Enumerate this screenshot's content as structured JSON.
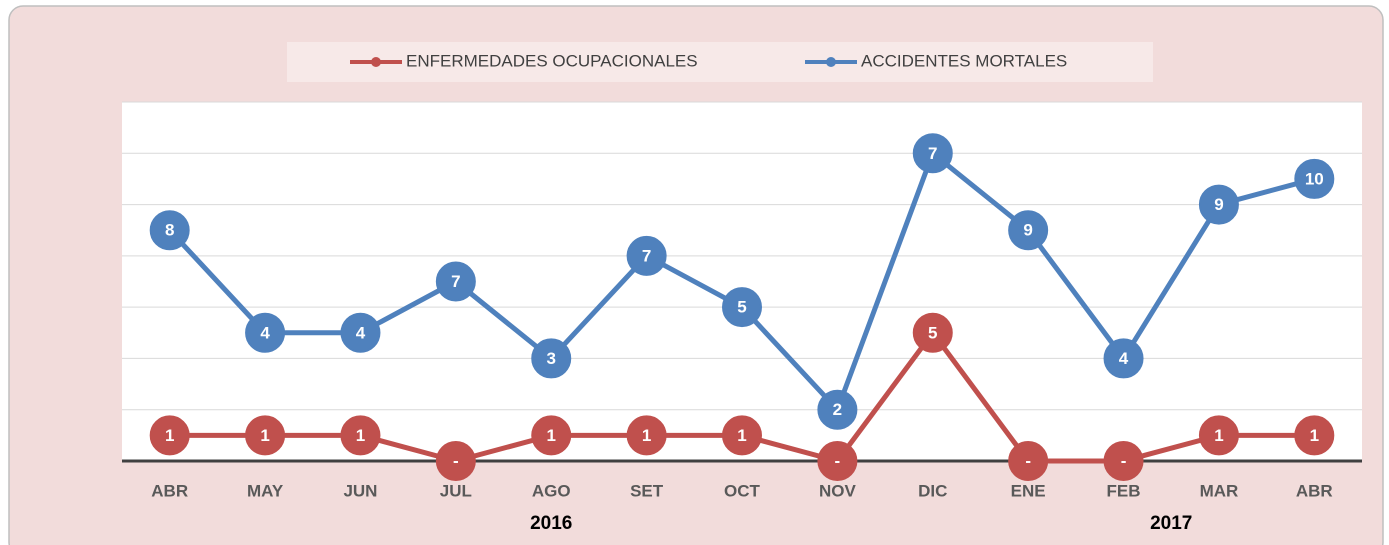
{
  "chart_data": {
    "type": "line",
    "stacked": true,
    "categories": [
      "ABR",
      "MAY",
      "JUN",
      "JUL",
      "AGO",
      "SET",
      "OCT",
      "NOV",
      "DIC",
      "ENE",
      "FEB",
      "MAR",
      "ABR"
    ],
    "groups": [
      {
        "label": "2016",
        "start": 0,
        "end": 8
      },
      {
        "label": "2017",
        "start": 9,
        "end": 12
      }
    ],
    "series": [
      {
        "name": "ENFERMEDADES OCUPACIONALES",
        "color": "#c0504d",
        "values": [
          1,
          1,
          1,
          0,
          1,
          1,
          1,
          0,
          5,
          0,
          0,
          1,
          1
        ],
        "value_labels": [
          "1",
          "1",
          "1",
          "-",
          "1",
          "1",
          "1",
          "-",
          "5",
          "-",
          "-",
          "1",
          "1"
        ]
      },
      {
        "name": "ACCIDENTES MORTALES",
        "color": "#4f81bd",
        "values": [
          8,
          4,
          4,
          7,
          3,
          7,
          5,
          2,
          7,
          9,
          4,
          9,
          10
        ]
      }
    ],
    "ylim": [
      0,
      14
    ],
    "yticks": [
      0,
      2,
      4,
      6,
      8,
      10,
      12,
      14
    ],
    "grid": true,
    "legend": "top"
  }
}
